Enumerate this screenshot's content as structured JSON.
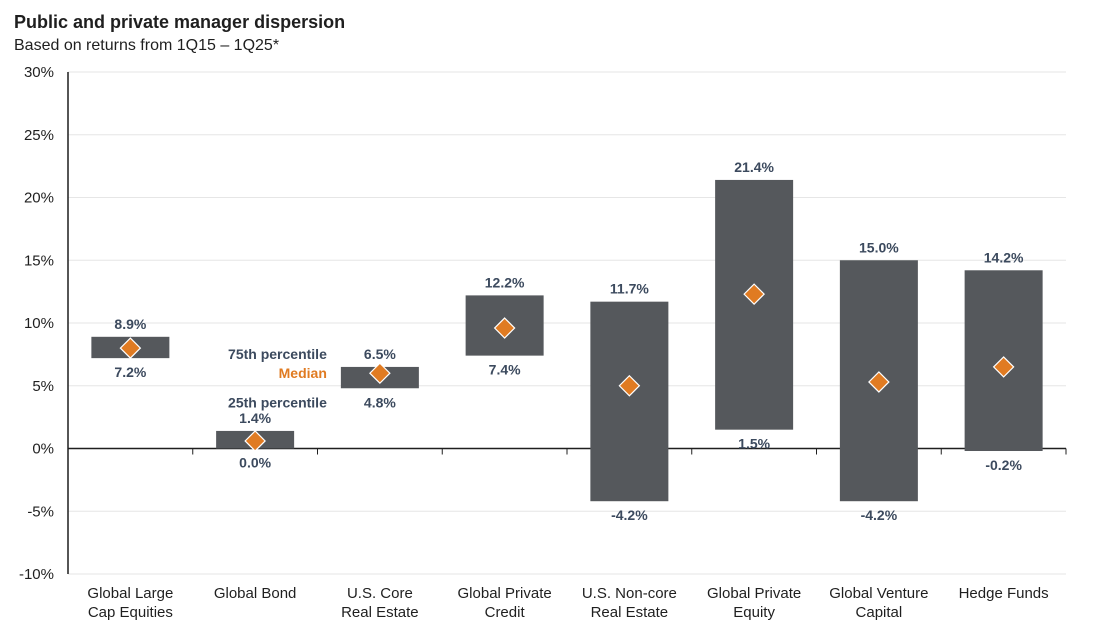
{
  "chart_data": {
    "type": "floating-bar",
    "title": "Public and private manager dispersion",
    "subtitle": "Based on returns from 1Q15 – 1Q25*",
    "ylim": [
      -10,
      30
    ],
    "yticks": [
      -10,
      -5,
      0,
      5,
      10,
      15,
      20,
      25,
      30
    ],
    "ytick_labels": [
      "-10%",
      "-5%",
      "0%",
      "5%",
      "10%",
      "15%",
      "20%",
      "25%",
      "30%"
    ],
    "categories": [
      [
        "Global Large",
        "Cap Equities"
      ],
      [
        "Global Bond"
      ],
      [
        "U.S. Core",
        "Real Estate"
      ],
      [
        "Global Private",
        "Credit"
      ],
      [
        "U.S. Non-core",
        "Real Estate"
      ],
      [
        "Global Private",
        "Equity"
      ],
      [
        "Global Venture",
        "Capital"
      ],
      [
        "Hedge Funds"
      ]
    ],
    "series": [
      {
        "name": "75th percentile",
        "values": [
          8.9,
          1.4,
          6.5,
          12.2,
          11.7,
          21.4,
          15.0,
          14.2
        ],
        "labels": [
          "8.9%",
          "1.4%",
          "6.5%",
          "12.2%",
          "11.7%",
          "21.4%",
          "15.0%",
          "14.2%"
        ]
      },
      {
        "name": "25th percentile",
        "values": [
          7.2,
          0.0,
          4.8,
          7.4,
          -4.2,
          1.5,
          -4.2,
          -0.2
        ],
        "labels": [
          "7.2%",
          "0.0%",
          "4.8%",
          "7.4%",
          "-4.2%",
          "1.5%",
          "-4.2%",
          "-0.2%"
        ]
      },
      {
        "name": "Median",
        "values": [
          8.0,
          0.6,
          6.0,
          9.6,
          5.0,
          12.3,
          5.3,
          6.5
        ]
      }
    ],
    "annotations": {
      "p75": "75th percentile",
      "median": "Median",
      "p25": "25th percentile"
    },
    "colors": {
      "bar": "#55585c",
      "median": "#e07b22",
      "label": "#3c4a5e",
      "grid": "#e6e6e6",
      "axis": "#1f1f1f"
    },
    "grid": true
  }
}
